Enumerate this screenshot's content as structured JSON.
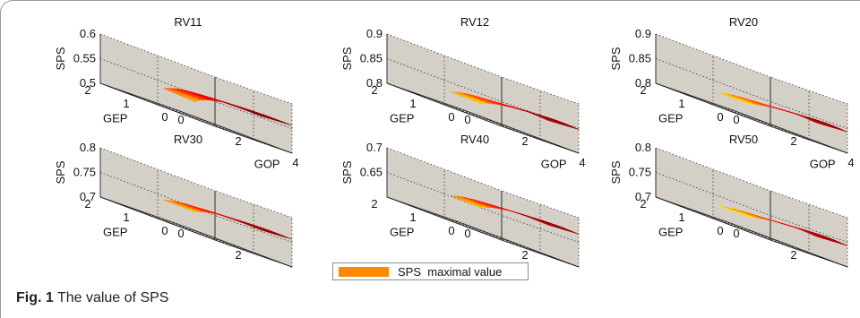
{
  "caption": {
    "label": "Fig. 1",
    "text": "The value of SPS"
  },
  "legend": {
    "label": "SPS  maximal value",
    "color": "#ff8a00"
  },
  "colors": {
    "panel_fill": "#d4d0c8",
    "grid": "#333333"
  },
  "chart_data": [
    {
      "type": "surface3d",
      "title": "RV11",
      "xlabel": "GOP",
      "ylabel": "GEP",
      "zlabel": "SPS",
      "x_ticks": [
        "0",
        "2",
        "4"
      ],
      "y_ticks": [
        "0",
        "1",
        "2"
      ],
      "z_ticks": [
        "0.5",
        "0.55",
        "0.6"
      ],
      "xlim": [
        0,
        4
      ],
      "ylim": [
        0,
        2
      ],
      "zlim": [
        0.5,
        0.6
      ],
      "surface": {
        "z_at_origin": 0.49,
        "z_peak": 0.557,
        "z_ridge": 0.556
      }
    },
    {
      "type": "surface3d",
      "title": "RV12",
      "xlabel": "GOP",
      "ylabel": "GEP",
      "zlabel": "SPS",
      "x_ticks": [
        "0",
        "2",
        "4"
      ],
      "y_ticks": [
        "0",
        "1",
        "2"
      ],
      "z_ticks": [
        "0.8",
        "0.85",
        "0.9"
      ],
      "xlim": [
        0,
        4
      ],
      "ylim": [
        0,
        2
      ],
      "zlim": [
        0.8,
        0.9
      ],
      "surface": {
        "z_at_origin": 0.795,
        "z_peak": 0.85,
        "z_ridge": 0.845
      }
    },
    {
      "type": "surface3d",
      "title": "RV20",
      "xlabel": "GOP",
      "ylabel": "GEP",
      "zlabel": "SPS",
      "x_ticks": [
        "0",
        "2",
        "4"
      ],
      "y_ticks": [
        "0",
        "1",
        "2"
      ],
      "z_ticks": [
        "0.8",
        "0.85",
        "0.9"
      ],
      "xlim": [
        0,
        4
      ],
      "ylim": [
        0,
        2
      ],
      "zlim": [
        0.8,
        0.9
      ],
      "surface": {
        "z_at_origin": 0.8,
        "z_peak": 0.845,
        "z_ridge": 0.84
      }
    },
    {
      "type": "surface3d",
      "title": "RV30",
      "xlabel": "GOP",
      "ylabel": "GEP",
      "zlabel": "SPS",
      "x_ticks": [
        "0",
        "2",
        "4"
      ],
      "y_ticks": [
        "0",
        "1",
        "2"
      ],
      "z_ticks": [
        "0.7",
        "0.75",
        "0.8"
      ],
      "xlim": [
        0,
        4
      ],
      "ylim": [
        0,
        2
      ],
      "zlim": [
        0.7,
        0.8
      ],
      "surface": {
        "z_at_origin": 0.71,
        "z_peak": 0.757,
        "z_ridge": 0.755
      }
    },
    {
      "type": "surface3d",
      "title": "RV40",
      "xlabel": "GOP",
      "ylabel": "GEP",
      "zlabel": "SPS",
      "x_ticks": [
        "0",
        "2",
        "4"
      ],
      "y_ticks": [
        "0",
        "1",
        "2"
      ],
      "z_ticks": [
        "0.65",
        "0.7"
      ],
      "xlim": [
        0,
        4
      ],
      "ylim": [
        0,
        2
      ],
      "zlim": [
        0.6,
        0.7
      ],
      "surface": {
        "z_at_origin": 0.615,
        "z_peak": 0.668,
        "z_ridge": 0.665
      }
    },
    {
      "type": "surface3d",
      "title": "RV50",
      "xlabel": "GOP",
      "ylabel": "GEP",
      "zlabel": "SPS",
      "x_ticks": [
        "0",
        "2",
        "4"
      ],
      "y_ticks": [
        "0",
        "1",
        "2"
      ],
      "z_ticks": [
        "0.7",
        "0.75",
        "0.8"
      ],
      "xlim": [
        0,
        4
      ],
      "ylim": [
        0,
        2
      ],
      "zlim": [
        0.7,
        0.8
      ],
      "surface": {
        "z_at_origin": 0.705,
        "z_peak": 0.745,
        "z_ridge": 0.74
      }
    }
  ]
}
